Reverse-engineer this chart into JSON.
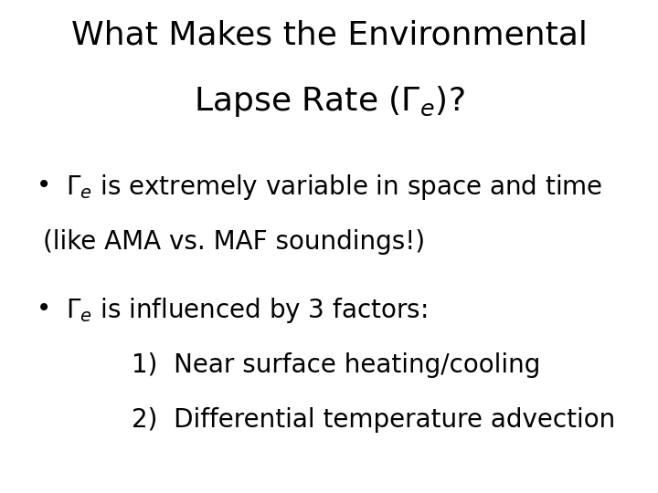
{
  "background_color": "#ffffff",
  "title_line1": "What Makes the Environmental",
  "title_line2": "Lapse Rate (Γₑ)?",
  "title_fontsize": 26,
  "bullet1_main_prefix": "•  Γ",
  "bullet1_main_suffix": " is extremely variable in space and time",
  "bullet1_sub": "(like AMA vs. MAF soundings!)",
  "bullet2_main_prefix": "•  Γ",
  "bullet2_main_suffix": " is influenced by 3 factors:",
  "item1": "1)  Near surface heating/cooling",
  "item2": "2)  Differential temperature advection",
  "text_color": "#000000",
  "title_fontsize_val": 26,
  "body_fontsize": 20,
  "sub_indent": 0.28
}
